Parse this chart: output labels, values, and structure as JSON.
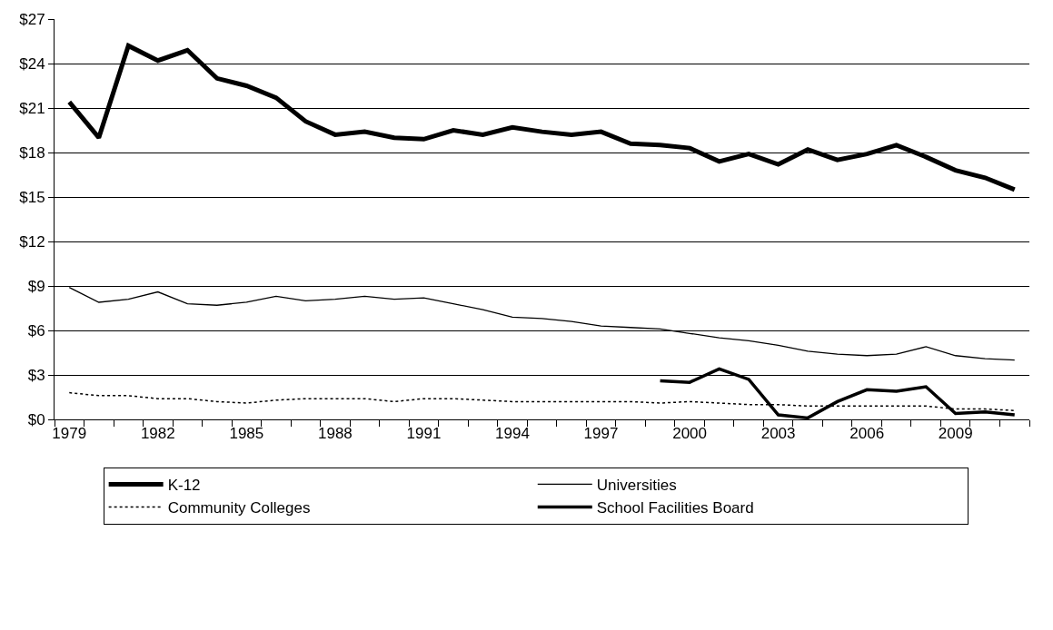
{
  "chart_data": {
    "type": "line",
    "categories": [
      "1979",
      null,
      null,
      "1982",
      null,
      null,
      "1985",
      null,
      null,
      "1988",
      null,
      null,
      "1991",
      null,
      null,
      "1994",
      null,
      null,
      "1997",
      null,
      null,
      "2000",
      null,
      null,
      "2003",
      null,
      null,
      "2006",
      null,
      null,
      "2009",
      null,
      null
    ],
    "series": [
      {
        "name": "K-12",
        "color": "#000000",
        "line_style": "solid",
        "values": [
          21.4,
          19.0,
          25.2,
          24.2,
          24.9,
          23.0,
          22.5,
          21.7,
          20.1,
          19.2,
          19.4,
          19.0,
          18.9,
          19.5,
          19.2,
          19.7,
          19.4,
          19.2,
          19.4,
          18.6,
          18.5,
          18.3,
          17.4,
          17.9,
          17.2,
          18.2,
          17.5,
          17.9,
          18.5,
          17.7,
          16.8,
          16.3,
          15.5
        ]
      },
      {
        "name": "Universities",
        "color": "#000000",
        "line_style": "solid",
        "values": [
          8.9,
          7.9,
          8.1,
          8.6,
          7.8,
          7.7,
          7.9,
          8.3,
          8.0,
          8.1,
          8.3,
          8.1,
          8.2,
          7.8,
          7.4,
          6.9,
          6.8,
          6.6,
          6.3,
          6.2,
          6.1,
          5.8,
          5.5,
          5.3,
          5.0,
          4.6,
          4.4,
          4.3,
          4.4,
          4.9,
          4.3,
          4.1,
          4.0
        ]
      },
      {
        "name": "Community Colleges",
        "color": "#000000",
        "line_style": "dotted",
        "values": [
          1.8,
          1.6,
          1.6,
          1.4,
          1.4,
          1.2,
          1.1,
          1.3,
          1.4,
          1.4,
          1.4,
          1.2,
          1.4,
          1.4,
          1.3,
          1.2,
          1.2,
          1.2,
          1.2,
          1.2,
          1.1,
          1.2,
          1.1,
          1.0,
          1.0,
          0.9,
          0.9,
          0.9,
          0.9,
          0.9,
          0.7,
          0.7,
          0.6
        ]
      },
      {
        "name": "School Facilities Board",
        "color": "#000000",
        "line_style": "solid",
        "values": [
          null,
          null,
          null,
          null,
          null,
          null,
          null,
          null,
          null,
          null,
          null,
          null,
          null,
          null,
          null,
          null,
          null,
          null,
          null,
          null,
          2.6,
          2.5,
          3.4,
          2.7,
          0.3,
          0.1,
          1.2,
          2.0,
          1.9,
          2.2,
          0.4,
          0.5,
          0.3
        ]
      }
    ],
    "ylim": [
      0,
      27
    ],
    "yticks": [
      {
        "value": 0,
        "label": "$0"
      },
      {
        "value": 3,
        "label": "$3"
      },
      {
        "value": 6,
        "label": "$6"
      },
      {
        "value": 9,
        "label": "$9"
      },
      {
        "value": 12,
        "label": "$12"
      },
      {
        "value": 15,
        "label": "$15"
      },
      {
        "value": 18,
        "label": "$18"
      },
      {
        "value": 21,
        "label": "$21"
      },
      {
        "value": 24,
        "label": "$24"
      },
      {
        "value": 27,
        "label": "$27"
      }
    ],
    "grid": "y",
    "legend": "bottom",
    "marker": "none"
  }
}
